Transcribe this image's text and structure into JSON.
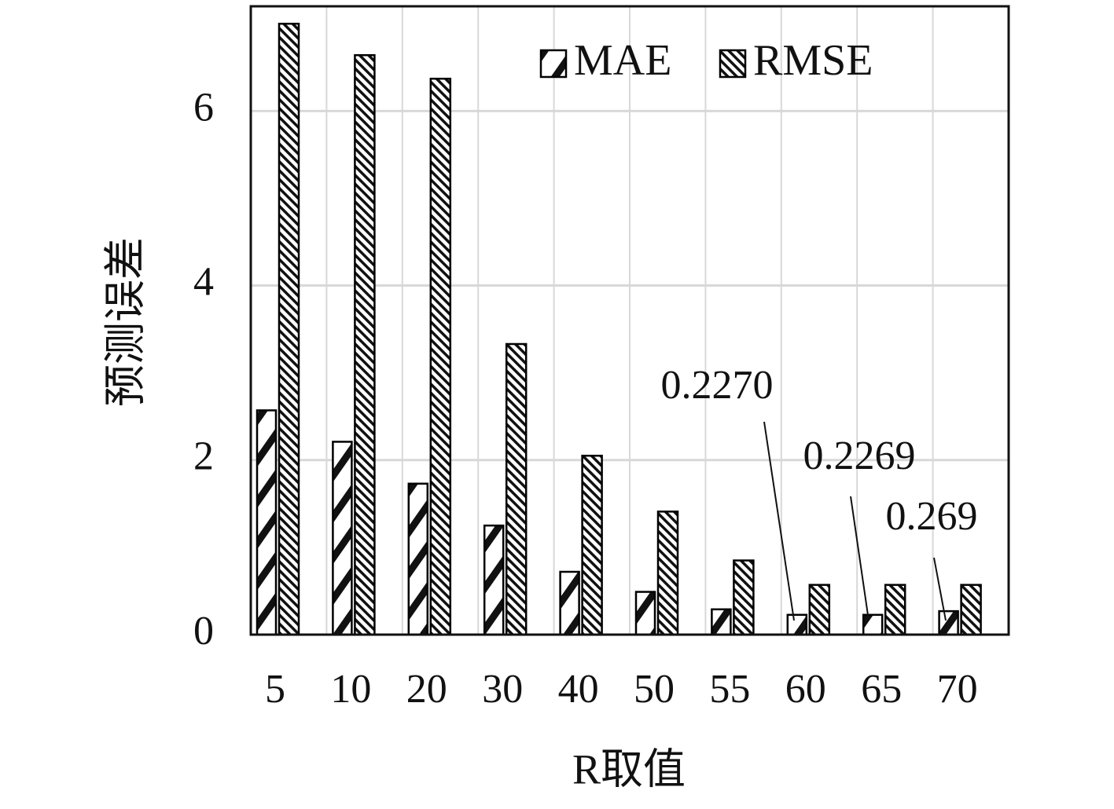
{
  "chart_data": {
    "type": "bar",
    "x_label": "R取值",
    "y_label": "预测误差",
    "categories": [
      "5",
      "10",
      "20",
      "30",
      "40",
      "50",
      "55",
      "60",
      "65",
      "70"
    ],
    "series": [
      {
        "name": "MAE",
        "color": "#000000",
        "values": [
          2.57,
          2.21,
          1.73,
          1.25,
          0.72,
          0.49,
          0.29,
          0.227,
          0.2269,
          0.269
        ],
        "value_labels": [
          null,
          null,
          null,
          null,
          null,
          null,
          null,
          "0.2270",
          "0.2269",
          "0.269"
        ]
      },
      {
        "name": "RMSE",
        "color": "#000000",
        "values": [
          7.0,
          6.64,
          6.37,
          3.33,
          2.05,
          1.41,
          0.85,
          0.57,
          0.57,
          0.57
        ]
      }
    ],
    "ylim": [
      0,
      7.2
    ],
    "yticks": [
      0,
      2,
      4,
      6
    ],
    "grid": true,
    "legend": "upper right"
  }
}
